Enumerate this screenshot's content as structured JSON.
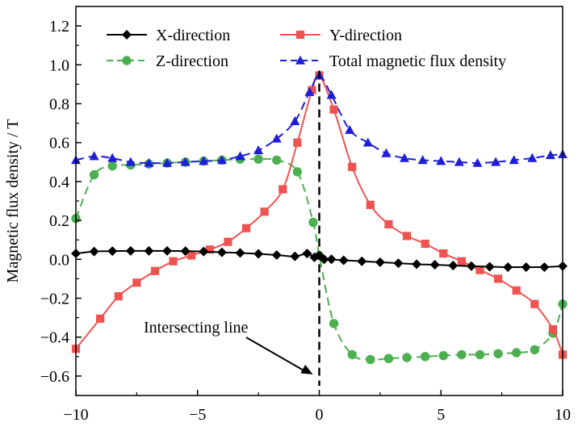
{
  "chart_data": {
    "type": "line",
    "title": "",
    "xlabel": "",
    "ylabel": "Magnetic flux density / T",
    "xlim": [
      -10,
      10
    ],
    "ylim": [
      -0.7,
      1.3
    ],
    "xticks": [
      -10,
      -5,
      0,
      5,
      10
    ],
    "xtick_labels": [
      "−10",
      "−5",
      "0",
      "5",
      "10"
    ],
    "yticks": [
      -0.6,
      -0.4,
      -0.2,
      0.0,
      0.2,
      0.4,
      0.6,
      0.8,
      1.0,
      1.2
    ],
    "ytick_labels": [
      "−0.6",
      "−0.4",
      "−0.2",
      "0.0",
      "0.2",
      "0.4",
      "0.6",
      "0.8",
      "1.0",
      "1.2"
    ],
    "grid": false,
    "legend_position": "top",
    "series": [
      {
        "name": "X-direction",
        "color": "#000000",
        "line_style": "solid",
        "marker": "diamond",
        "x": [
          -10,
          -9.25,
          -8.5,
          -7.75,
          -7.0,
          -6.25,
          -5.5,
          -4.75,
          -4.0,
          -3.25,
          -2.5,
          -1.75,
          -1.0,
          -0.5,
          -0.2,
          0.0,
          0.2,
          0.5,
          1.0,
          1.75,
          2.5,
          3.25,
          4.0,
          4.75,
          5.5,
          6.25,
          7.0,
          7.75,
          8.5,
          9.25,
          10.0
        ],
        "y": [
          0.03,
          0.04,
          0.042,
          0.043,
          0.043,
          0.043,
          0.042,
          0.04,
          0.036,
          0.033,
          0.028,
          0.022,
          0.015,
          0.03,
          0.01,
          0.02,
          0.0,
          0.0,
          -0.005,
          -0.01,
          -0.015,
          -0.02,
          -0.025,
          -0.028,
          -0.032,
          -0.035,
          -0.038,
          -0.04,
          -0.04,
          -0.04,
          -0.035
        ]
      },
      {
        "name": "Y-direction",
        "color": "#ef5350",
        "line_style": "solid",
        "marker": "square",
        "x": [
          -10,
          -9.0,
          -8.25,
          -7.5,
          -6.75,
          -6.0,
          -5.25,
          -4.5,
          -3.75,
          -3.0,
          -2.25,
          -1.5,
          -0.9,
          -0.3,
          0.0,
          0.6,
          1.35,
          2.1,
          2.85,
          3.6,
          4.35,
          5.1,
          5.85,
          6.6,
          7.35,
          8.1,
          8.85,
          9.6,
          10.0
        ],
        "y": [
          -0.46,
          -0.305,
          -0.19,
          -0.12,
          -0.06,
          -0.01,
          0.02,
          0.05,
          0.09,
          0.16,
          0.245,
          0.36,
          0.6,
          0.87,
          0.945,
          0.77,
          0.475,
          0.28,
          0.18,
          0.12,
          0.08,
          0.03,
          -0.01,
          -0.055,
          -0.1,
          -0.16,
          -0.23,
          -0.36,
          -0.49
        ]
      },
      {
        "name": "Z-direction",
        "color": "#4caf50",
        "line_style": "dashed",
        "marker": "circle",
        "x": [
          -10,
          -9.25,
          -8.5,
          -7.75,
          -7.0,
          -6.25,
          -5.5,
          -4.75,
          -4.0,
          -3.25,
          -2.5,
          -1.75,
          -0.9,
          -0.25,
          0.0,
          0.6,
          1.35,
          2.1,
          2.85,
          3.6,
          4.35,
          5.1,
          5.85,
          6.6,
          7.35,
          8.1,
          8.85,
          9.6,
          10.0
        ],
        "y": [
          0.21,
          0.435,
          0.48,
          0.485,
          0.49,
          0.495,
          0.5,
          0.505,
          0.51,
          0.515,
          0.515,
          0.51,
          0.45,
          0.19,
          0.02,
          -0.33,
          -0.49,
          -0.515,
          -0.51,
          -0.505,
          -0.5,
          -0.495,
          -0.49,
          -0.49,
          -0.485,
          -0.48,
          -0.465,
          -0.38,
          -0.23
        ]
      },
      {
        "name": "Total magnetic flux density",
        "color": "#1e1ed8",
        "line_style": "dashed",
        "marker": "triangle",
        "x": [
          -10,
          -9.25,
          -8.5,
          -7.75,
          -7.0,
          -6.25,
          -5.5,
          -4.75,
          -4.0,
          -3.25,
          -2.5,
          -1.75,
          -1.0,
          -0.4,
          0.0,
          0.5,
          1.25,
          2.0,
          2.75,
          3.5,
          4.25,
          5.0,
          5.75,
          6.5,
          7.25,
          8.0,
          8.75,
          9.5,
          10.0
        ],
        "y": [
          0.51,
          0.53,
          0.52,
          0.5,
          0.495,
          0.495,
          0.5,
          0.505,
          0.51,
          0.53,
          0.56,
          0.62,
          0.71,
          0.86,
          0.945,
          0.845,
          0.665,
          0.6,
          0.545,
          0.52,
          0.51,
          0.505,
          0.5,
          0.495,
          0.5,
          0.51,
          0.52,
          0.535,
          0.54
        ]
      }
    ],
    "annotations": [
      {
        "text": "Intersecting line",
        "vertical_line_x": 0,
        "arrow_to": [
          0,
          -0.6
        ]
      }
    ]
  }
}
